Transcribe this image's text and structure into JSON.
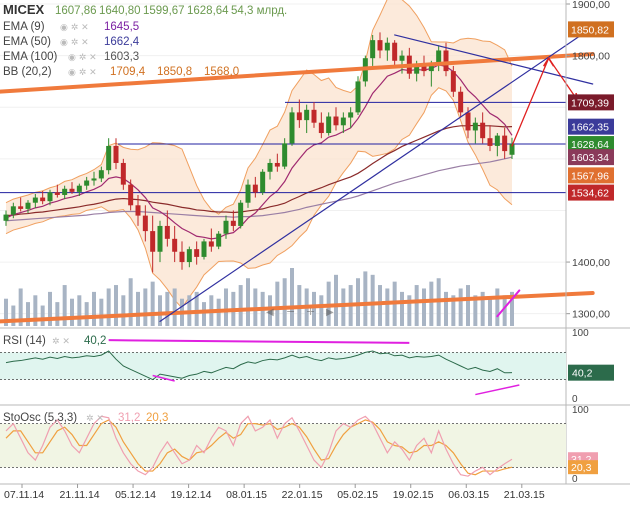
{
  "header": {
    "symbol": "MICEX",
    "ohlc": [
      "1607,86",
      "1640,80",
      "1599,67",
      "1628,64"
    ],
    "volume": "54,3 млрд."
  },
  "legend": [
    {
      "name": "EMA (9)",
      "value": "1645,5",
      "color": "#7b1fa2"
    },
    {
      "name": "EMA (50)",
      "value": "1662,4",
      "color": "#3b3b9a"
    },
    {
      "name": "EMA (100)",
      "value": "1603,3",
      "color": "#555555"
    },
    {
      "name": "BB (20,2)",
      "values": [
        "1709,4",
        "1850,8",
        "1568,0"
      ],
      "color": "#d07020"
    }
  ],
  "colors": {
    "up_candle": "#2e8b2e",
    "down_candle": "#c0282a",
    "trend_orange": "#f07a3c",
    "trend_blue": "#3030a0",
    "bb_fill": "#fbe3cf",
    "bb_line": "#f0a060",
    "ema9": "#a02a70",
    "ema50": "#8a2a2a",
    "ema100": "#9a7fa5",
    "magenta": "#e020e0",
    "red_arrow": "#e02020",
    "rsi_line": "#2c6b4b",
    "rsi_fill": "#e0f5ef",
    "sto_fill": "#f1f5e4",
    "sto_k": "#f09fb0",
    "sto_d": "#f0a040",
    "volume": "#a8b4c4"
  },
  "price_axis": {
    "ticks": [
      "1900,00",
      "1800,00",
      "1400,00",
      "1300,00"
    ],
    "tick_values": [
      1900,
      1800,
      1400,
      1300
    ],
    "badges": [
      {
        "text": "1850,82",
        "value": 1850.82,
        "color": "#d07020"
      },
      {
        "text": "1709,39",
        "value": 1709.39,
        "color": "#7a1a2a"
      },
      {
        "text": "1662,35",
        "value": 1662.35,
        "color": "#3b3b9a"
      },
      {
        "text": "1628,64",
        "value": 1628.64,
        "color": "#2e8b2e"
      },
      {
        "text": "1603,34",
        "value": 1603.34,
        "color": "#8a3a5a"
      },
      {
        "text": "1567,96",
        "value": 1567.96,
        "color": "#e07030"
      },
      {
        "text": "1534,62",
        "value": 1534.62,
        "color": "#c0282a"
      }
    ]
  },
  "rsi": {
    "label": "RSI (14)",
    "value": "40,2",
    "axis_ticks": [
      "100",
      "0"
    ],
    "axis_tick_values": [
      100,
      0
    ],
    "badge": "40,2",
    "levels": [
      70,
      30
    ]
  },
  "stoch": {
    "label": "StoOsc (5,3,3)",
    "k": "31,2",
    "d": "20,3",
    "axis_ticks": [
      "100",
      "0"
    ],
    "axis_tick_values": [
      100,
      0
    ],
    "badges": [
      {
        "text": "31,2",
        "value": 31.2,
        "color": "#f09fb0"
      },
      {
        "text": "20,3",
        "value": 20.3,
        "color": "#f0a040"
      }
    ],
    "levels": [
      80,
      20
    ]
  },
  "x_axis": {
    "labels": [
      "07.11.14",
      "21.11.14",
      "05.12.14",
      "19.12.14",
      "08.01.15",
      "22.01.15",
      "05.02.15",
      "19.02.15",
      "06.03.15",
      "21.03.15"
    ]
  },
  "chart_data": {
    "type": "candlestick",
    "title": "MICEX",
    "ylim": [
      1280,
      1900
    ],
    "horizontal_levels": [
      1709.39,
      1628.64,
      1534.62
    ],
    "candles": [
      [
        1480,
        1500,
        1470,
        1492
      ],
      [
        1492,
        1515,
        1485,
        1508
      ],
      [
        1508,
        1525,
        1498,
        1503
      ],
      [
        1503,
        1520,
        1495,
        1515
      ],
      [
        1515,
        1532,
        1505,
        1525
      ],
      [
        1525,
        1538,
        1512,
        1518
      ],
      [
        1518,
        1540,
        1510,
        1535
      ],
      [
        1535,
        1550,
        1525,
        1530
      ],
      [
        1530,
        1548,
        1522,
        1542
      ],
      [
        1542,
        1555,
        1532,
        1536
      ],
      [
        1536,
        1552,
        1528,
        1548
      ],
      [
        1548,
        1565,
        1540,
        1558
      ],
      [
        1558,
        1575,
        1548,
        1562
      ],
      [
        1562,
        1585,
        1555,
        1578
      ],
      [
        1578,
        1640,
        1570,
        1625
      ],
      [
        1625,
        1640,
        1580,
        1592
      ],
      [
        1592,
        1600,
        1540,
        1550
      ],
      [
        1550,
        1560,
        1500,
        1510
      ],
      [
        1510,
        1530,
        1470,
        1490
      ],
      [
        1490,
        1510,
        1440,
        1460
      ],
      [
        1460,
        1490,
        1380,
        1420
      ],
      [
        1420,
        1480,
        1400,
        1470
      ],
      [
        1470,
        1500,
        1430,
        1445
      ],
      [
        1445,
        1470,
        1400,
        1420
      ],
      [
        1420,
        1440,
        1385,
        1400
      ],
      [
        1400,
        1430,
        1390,
        1425
      ],
      [
        1425,
        1440,
        1395,
        1410
      ],
      [
        1410,
        1445,
        1405,
        1440
      ],
      [
        1440,
        1465,
        1420,
        1430
      ],
      [
        1430,
        1460,
        1425,
        1455
      ],
      [
        1455,
        1490,
        1445,
        1480
      ],
      [
        1480,
        1500,
        1460,
        1470
      ],
      [
        1470,
        1520,
        1465,
        1515
      ],
      [
        1515,
        1560,
        1505,
        1550
      ],
      [
        1550,
        1565,
        1525,
        1535
      ],
      [
        1535,
        1580,
        1530,
        1575
      ],
      [
        1575,
        1600,
        1560,
        1592
      ],
      [
        1592,
        1610,
        1575,
        1585
      ],
      [
        1585,
        1640,
        1580,
        1630
      ],
      [
        1630,
        1700,
        1625,
        1690
      ],
      [
        1690,
        1715,
        1660,
        1675
      ],
      [
        1675,
        1705,
        1650,
        1695
      ],
      [
        1695,
        1710,
        1660,
        1670
      ],
      [
        1670,
        1690,
        1640,
        1650
      ],
      [
        1650,
        1690,
        1645,
        1682
      ],
      [
        1682,
        1700,
        1655,
        1665
      ],
      [
        1665,
        1690,
        1650,
        1680
      ],
      [
        1680,
        1700,
        1660,
        1690
      ],
      [
        1690,
        1760,
        1685,
        1750
      ],
      [
        1750,
        1800,
        1740,
        1795
      ],
      [
        1795,
        1840,
        1780,
        1830
      ],
      [
        1830,
        1845,
        1795,
        1810
      ],
      [
        1810,
        1835,
        1790,
        1825
      ],
      [
        1825,
        1830,
        1780,
        1790
      ],
      [
        1790,
        1810,
        1765,
        1800
      ],
      [
        1800,
        1815,
        1755,
        1765
      ],
      [
        1765,
        1790,
        1750,
        1780
      ],
      [
        1780,
        1800,
        1760,
        1770
      ],
      [
        1770,
        1790,
        1740,
        1785
      ],
      [
        1785,
        1820,
        1770,
        1810
      ],
      [
        1810,
        1825,
        1760,
        1770
      ],
      [
        1770,
        1780,
        1720,
        1730
      ],
      [
        1730,
        1740,
        1680,
        1690
      ],
      [
        1690,
        1700,
        1640,
        1655
      ],
      [
        1655,
        1680,
        1630,
        1670
      ],
      [
        1670,
        1690,
        1630,
        1640
      ],
      [
        1640,
        1665,
        1615,
        1625
      ],
      [
        1625,
        1650,
        1605,
        1645
      ],
      [
        1645,
        1660,
        1600,
        1615
      ],
      [
        1607.86,
        1640.8,
        1599.67,
        1628.64
      ]
    ],
    "volume": [
      40,
      30,
      55,
      35,
      45,
      30,
      50,
      35,
      60,
      40,
      45,
      35,
      50,
      40,
      55,
      60,
      45,
      70,
      50,
      55,
      65,
      45,
      50,
      55,
      40,
      45,
      50,
      35,
      45,
      40,
      55,
      50,
      60,
      70,
      55,
      50,
      45,
      65,
      70,
      85,
      60,
      55,
      50,
      45,
      65,
      75,
      55,
      60,
      70,
      80,
      75,
      60,
      55,
      65,
      50,
      45,
      60,
      55,
      65,
      70,
      50,
      45,
      55,
      60,
      45,
      50,
      40,
      55,
      45,
      50
    ],
    "rsi": [
      55,
      57,
      58,
      60,
      62,
      60,
      63,
      61,
      64,
      62,
      63,
      65,
      64,
      66,
      72,
      60,
      50,
      45,
      40,
      35,
      30,
      38,
      36,
      34,
      32,
      36,
      38,
      42,
      40,
      44,
      48,
      46,
      52,
      56,
      54,
      58,
      60,
      59,
      62,
      66,
      62,
      64,
      60,
      58,
      62,
      60,
      61,
      63,
      66,
      70,
      72,
      68,
      69,
      65,
      66,
      62,
      64,
      63,
      64,
      66,
      60,
      55,
      50,
      45,
      48,
      44,
      42,
      46,
      40,
      40.2
    ],
    "stoch_k": [
      70,
      80,
      60,
      40,
      30,
      50,
      75,
      85,
      70,
      50,
      40,
      60,
      80,
      90,
      88,
      60,
      40,
      25,
      15,
      10,
      20,
      40,
      55,
      40,
      25,
      30,
      50,
      40,
      60,
      75,
      70,
      50,
      80,
      90,
      70,
      75,
      85,
      60,
      80,
      88,
      70,
      50,
      30,
      20,
      40,
      70,
      80,
      75,
      85,
      90,
      80,
      60,
      40,
      55,
      45,
      30,
      50,
      60,
      40,
      70,
      45,
      25,
      10,
      8,
      15,
      20,
      10,
      18,
      25,
      31.2
    ],
    "stoch_d": [
      60,
      70,
      70,
      55,
      40,
      40,
      55,
      70,
      75,
      65,
      50,
      50,
      65,
      80,
      85,
      75,
      55,
      40,
      25,
      15,
      15,
      25,
      40,
      45,
      35,
      30,
      40,
      42,
      50,
      60,
      68,
      60,
      65,
      80,
      80,
      78,
      80,
      72,
      75,
      80,
      75,
      62,
      45,
      30,
      32,
      50,
      65,
      75,
      80,
      85,
      82,
      72,
      55,
      50,
      48,
      40,
      42,
      50,
      50,
      55,
      50,
      40,
      25,
      12,
      10,
      15,
      15,
      15,
      18,
      20.3
    ],
    "ema9": [
      1485,
      1492,
      1496,
      1500,
      1505,
      1508,
      1514,
      1518,
      1523,
      1526,
      1530,
      1536,
      1541,
      1548,
      1562,
      1565,
      1562,
      1552,
      1540,
      1525,
      1505,
      1498,
      1488,
      1476,
      1465,
      1458,
      1450,
      1448,
      1445,
      1447,
      1454,
      1457,
      1469,
      1485,
      1495,
      1511,
      1527,
      1538,
      1556,
      1582,
      1600,
      1617,
      1627,
      1631,
      1642,
      1646,
      1653,
      1660,
      1678,
      1701,
      1727,
      1743,
      1760,
      1766,
      1773,
      1771,
      1773,
      1772,
      1775,
      1782,
      1779,
      1769,
      1753,
      1733,
      1720,
      1704,
      1688,
      1680,
      1667,
      1645.5
    ],
    "ema50": [
      1490,
      1491,
      1493,
      1494,
      1496,
      1497,
      1499,
      1501,
      1503,
      1505,
      1507,
      1510,
      1512,
      1515,
      1519,
      1522,
      1523,
      1522,
      1521,
      1519,
      1516,
      1514,
      1512,
      1509,
      1506,
      1504,
      1501,
      1500,
      1498,
      1497,
      1497,
      1496,
      1497,
      1499,
      1501,
      1503,
      1507,
      1510,
      1514,
      1521,
      1527,
      1534,
      1539,
      1544,
      1550,
      1555,
      1560,
      1565,
      1572,
      1581,
      1591,
      1600,
      1609,
      1616,
      1624,
      1630,
      1636,
      1642,
      1648,
      1654,
      1659,
      1662,
      1664,
      1664,
      1665,
      1664,
      1664,
      1663,
      1662,
      1662.4
    ],
    "ema100": [
      1480,
      1481,
      1482,
      1483,
      1484,
      1485,
      1486,
      1487,
      1488,
      1489,
      1490,
      1491,
      1493,
      1494,
      1496,
      1497,
      1498,
      1498,
      1498,
      1497,
      1496,
      1495,
      1494,
      1493,
      1492,
      1491,
      1490,
      1489,
      1488,
      1488,
      1488,
      1487,
      1488,
      1488,
      1489,
      1490,
      1492,
      1494,
      1496,
      1499,
      1502,
      1506,
      1509,
      1512,
      1515,
      1518,
      1521,
      1524,
      1528,
      1533,
      1538,
      1543,
      1548,
      1553,
      1557,
      1561,
      1565,
      1569,
      1573,
      1577,
      1580,
      1583,
      1586,
      1588,
      1590,
      1592,
      1594,
      1597,
      1600,
      1603.3
    ]
  }
}
